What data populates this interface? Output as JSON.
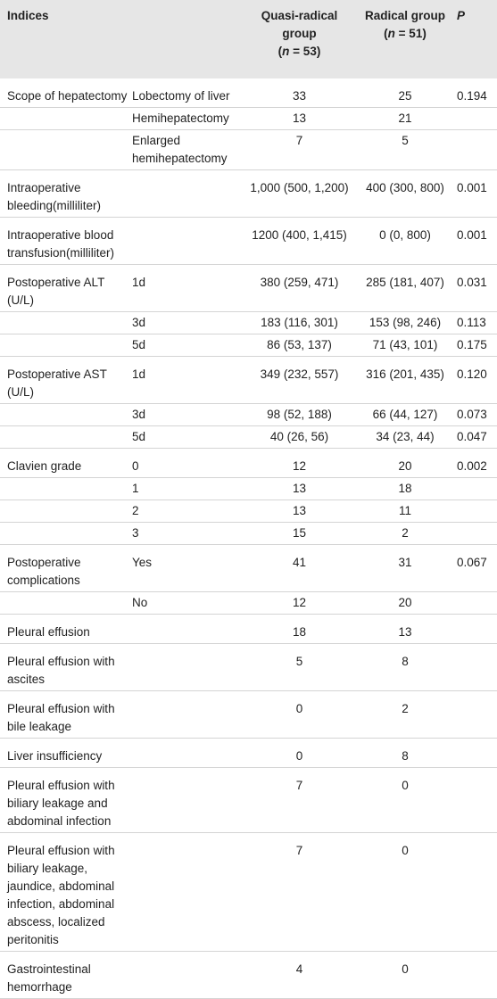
{
  "header": {
    "indices": "Indices",
    "quasi": {
      "label": "Quasi-radical group",
      "open": "(",
      "n": "n",
      "rest": " = 53)"
    },
    "radical": {
      "label": "Radical group",
      "open": "(",
      "n": "n",
      "rest": " = 51)"
    },
    "p": "P"
  },
  "rows": [
    {
      "group": "Scope of hepatectomy",
      "sub": "Lobectomy of liver",
      "quasi": "33",
      "radical": "25",
      "p": "0.194"
    },
    {
      "sub": "Hemihepatectomy",
      "quasi": "13",
      "radical": "21"
    },
    {
      "sub": "Enlarged hemihepatectomy",
      "quasi": "7",
      "radical": "5"
    },
    {
      "group": "Intraoperative bleeding(milliliter)",
      "quasi": "1,000 (500, 1,200)",
      "radical": "400 (300, 800)",
      "p": "0.001"
    },
    {
      "group": "Intraoperative blood transfusion(milliliter)",
      "quasi": "1200 (400, 1,415)",
      "radical": "0 (0, 800)",
      "p": "0.001"
    },
    {
      "group": "Postoperative ALT (U/L)",
      "sub": "1d",
      "quasi": "380 (259, 471)",
      "radical": "285 (181, 407)",
      "p": "0.031"
    },
    {
      "sub": "3d",
      "quasi": "183 (116, 301)",
      "radical": "153 (98, 246)",
      "p": "0.113"
    },
    {
      "sub": "5d",
      "quasi": "86 (53, 137)",
      "radical": "71 (43, 101)",
      "p": "0.175"
    },
    {
      "group": "Postoperative AST (U/L)",
      "sub": "1d",
      "quasi": "349 (232, 557)",
      "radical": "316 (201, 435)",
      "p": "0.120"
    },
    {
      "sub": "3d",
      "quasi": "98 (52, 188)",
      "radical": "66 (44, 127)",
      "p": "0.073"
    },
    {
      "sub": "5d",
      "quasi": "40 (26, 56)",
      "radical": "34 (23, 44)",
      "p": "0.047"
    },
    {
      "group": "Clavien grade",
      "sub": "0",
      "quasi": "12",
      "radical": "20",
      "p": "0.002"
    },
    {
      "sub": "1",
      "quasi": "13",
      "radical": "18"
    },
    {
      "sub": "2",
      "quasi": "13",
      "radical": "11"
    },
    {
      "sub": "3",
      "quasi": "15",
      "radical": "2"
    },
    {
      "group": "Postoperative complications",
      "sub": "Yes",
      "quasi": "41",
      "radical": "31",
      "p": "0.067"
    },
    {
      "sub": "No",
      "quasi": "12",
      "radical": "20"
    },
    {
      "group": "Pleural effusion",
      "quasi": "18",
      "radical": "13"
    },
    {
      "group": "Pleural effusion with ascites",
      "quasi": "5",
      "radical": "8"
    },
    {
      "group": "Pleural effusion with bile leakage",
      "quasi": "0",
      "radical": "2"
    },
    {
      "group": "Liver insufficiency",
      "quasi": "0",
      "radical": "8"
    },
    {
      "group": "Pleural effusion with biliary leakage and abdominal infection",
      "quasi": "7",
      "radical": "0"
    },
    {
      "group": "Pleural effusion with biliary leakage, jaundice, abdominal infection, abdominal abscess, localized peritonitis",
      "quasi": "7",
      "radical": "0"
    },
    {
      "group": "Gastrointestinal hemorrhage",
      "quasi": "4",
      "radical": "0"
    }
  ]
}
